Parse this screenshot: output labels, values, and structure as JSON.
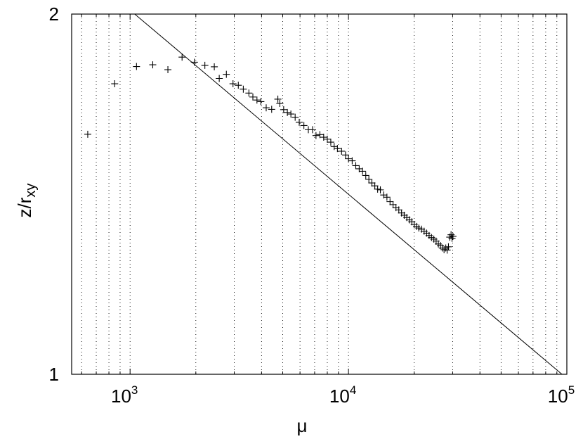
{
  "chart_data": {
    "type": "scatter",
    "title": "",
    "xlabel": "μ",
    "ylabel": {
      "main": "z/r",
      "sub": "xy"
    },
    "x_scale": "log",
    "y_scale": "log",
    "xlim": [
      540,
      100000
    ],
    "ylim": [
      1,
      2
    ],
    "grid": "vertical dotted lines at log minor ticks",
    "marker": "+",
    "x_tick_labels": [
      {
        "value": 1000,
        "base": "10",
        "exp": "3"
      },
      {
        "value": 10000,
        "base": "10",
        "exp": "4"
      },
      {
        "value": 100000,
        "base": "10",
        "exp": "5"
      }
    ],
    "y_tick_labels": [
      {
        "value": 1,
        "label": "1"
      },
      {
        "value": 2,
        "label": "2"
      }
    ],
    "reference_line": {
      "x": [
        1050,
        95000
      ],
      "y": [
        2.0,
        1.0
      ]
    },
    "series": [
      {
        "points": [
          [
            640,
            1.587
          ],
          [
            850,
            1.749
          ],
          [
            1070,
            1.808
          ],
          [
            1270,
            1.814
          ],
          [
            1490,
            1.797
          ],
          [
            1730,
            1.841
          ],
          [
            1970,
            1.823
          ],
          [
            2200,
            1.812
          ],
          [
            2430,
            1.807
          ],
          [
            2560,
            1.767
          ],
          [
            2760,
            1.781
          ],
          [
            2960,
            1.749
          ],
          [
            3130,
            1.744
          ],
          [
            3300,
            1.731
          ],
          [
            3500,
            1.718
          ],
          [
            3650,
            1.705
          ],
          [
            3810,
            1.695
          ],
          [
            3970,
            1.69
          ],
          [
            4200,
            1.67
          ],
          [
            4450,
            1.665
          ],
          [
            4750,
            1.698
          ],
          [
            4850,
            1.684
          ],
          [
            5050,
            1.664
          ],
          [
            5250,
            1.655
          ],
          [
            5450,
            1.65
          ],
          [
            5700,
            1.64
          ],
          [
            5950,
            1.624
          ],
          [
            6250,
            1.614
          ],
          [
            6550,
            1.601
          ],
          [
            6850,
            1.601
          ],
          [
            7100,
            1.583
          ],
          [
            7400,
            1.586
          ],
          [
            7700,
            1.578
          ],
          [
            8000,
            1.572
          ],
          [
            8300,
            1.563
          ],
          [
            8600,
            1.55
          ],
          [
            8900,
            1.544
          ],
          [
            9300,
            1.536
          ],
          [
            9700,
            1.525
          ],
          [
            10000,
            1.514
          ],
          [
            10400,
            1.508
          ],
          [
            10800,
            1.494
          ],
          [
            11200,
            1.485
          ],
          [
            11600,
            1.478
          ],
          [
            12000,
            1.466
          ],
          [
            12400,
            1.455
          ],
          [
            12800,
            1.445
          ],
          [
            13200,
            1.437
          ],
          [
            13600,
            1.428
          ],
          [
            14000,
            1.426
          ],
          [
            14500,
            1.412
          ],
          [
            15000,
            1.406
          ],
          [
            15500,
            1.394
          ],
          [
            16000,
            1.386
          ],
          [
            16500,
            1.378
          ],
          [
            17000,
            1.372
          ],
          [
            17500,
            1.364
          ],
          [
            18000,
            1.358
          ],
          [
            18500,
            1.352
          ],
          [
            19000,
            1.346
          ],
          [
            19500,
            1.341
          ],
          [
            20000,
            1.334
          ],
          [
            20500,
            1.329
          ],
          [
            21000,
            1.325
          ],
          [
            21600,
            1.322
          ],
          [
            22200,
            1.317
          ],
          [
            22800,
            1.312
          ],
          [
            23400,
            1.306
          ],
          [
            24000,
            1.301
          ],
          [
            24600,
            1.297
          ],
          [
            25200,
            1.292
          ],
          [
            25800,
            1.285
          ],
          [
            26400,
            1.281
          ],
          [
            26900,
            1.275
          ],
          [
            27400,
            1.271
          ],
          [
            27900,
            1.275
          ],
          [
            28300,
            1.27
          ],
          [
            28700,
            1.278
          ],
          [
            29100,
            1.302
          ],
          [
            29500,
            1.308
          ],
          [
            29800,
            1.299
          ],
          [
            30100,
            1.304
          ]
        ]
      }
    ]
  }
}
